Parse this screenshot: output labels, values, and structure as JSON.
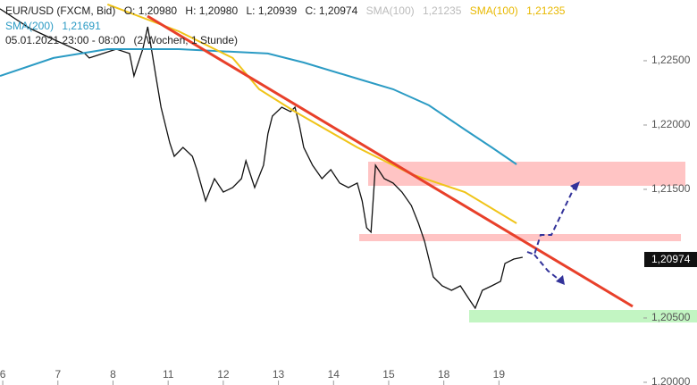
{
  "header": {
    "open": "O: 1,20980",
    "high": "H: 1,20980",
    "low": "L: 1,20939",
    "close": "C: 1,20974",
    "sma_gray_name": "SMA(100)",
    "sma_gray_value": "1,21235",
    "sma_yellow_value": "1,21235",
    "sma200_value": "1,21691",
    "date": "05.01.2021 23:00 - 08:00",
    "period": "(2 Wochen, 1 Stunde)"
  },
  "chart_data": {
    "type": "line",
    "last_label": "1,20974",
    "xlim": [
      -0.05,
      11.62
    ],
    "ylim": [
      1.19979,
      1.22972
    ],
    "xticks": [
      {
        "value": 0,
        "label": "6"
      },
      {
        "value": 1,
        "label": "7"
      },
      {
        "value": 2,
        "label": "8"
      },
      {
        "value": 3,
        "label": "11"
      },
      {
        "value": 4,
        "label": "12"
      },
      {
        "value": 5,
        "label": "13"
      },
      {
        "value": 6,
        "label": "14"
      },
      {
        "value": 7,
        "label": "15"
      },
      {
        "value": 8,
        "label": "18"
      },
      {
        "value": 9,
        "label": "19"
      }
    ],
    "yticks": [
      {
        "value": 1.225,
        "label": "1,22500"
      },
      {
        "value": 1.22,
        "label": "1,22000"
      },
      {
        "value": 1.215,
        "label": "1,21500"
      },
      {
        "value": 1.205,
        "label": "1,20500"
      },
      {
        "value": 1.2,
        "label": "1,20000"
      }
    ],
    "series": [
      {
        "name": "EUR/USD (FXCM, Bid)",
        "color": "#111111",
        "x": [
          -0.05,
          0.5,
          1.0,
          1.49,
          1.57,
          2.06,
          2.3,
          2.38,
          2.54,
          2.63,
          2.71,
          2.79,
          2.87,
          2.95,
          3.03,
          3.11,
          3.27,
          3.44,
          3.52,
          3.68,
          3.84,
          4.0,
          4.17,
          4.33,
          4.41,
          4.57,
          4.73,
          4.81,
          4.89,
          5.06,
          5.22,
          5.3,
          5.38,
          5.46,
          5.62,
          5.79,
          5.95,
          6.11,
          6.27,
          6.43,
          6.52,
          6.6,
          6.68,
          6.76,
          6.92,
          7.08,
          7.24,
          7.41,
          7.54,
          7.65,
          7.73,
          7.81,
          7.97,
          8.14,
          8.3,
          8.46,
          8.57,
          8.7,
          8.87,
          9.03,
          9.11,
          9.27,
          9.43
        ],
        "values": [
          1.22903,
          1.2275,
          1.2265,
          1.22556,
          1.22521,
          1.2259,
          1.22556,
          1.22382,
          1.2259,
          1.22764,
          1.22556,
          1.22347,
          1.22139,
          1.22,
          1.21861,
          1.21757,
          1.21826,
          1.21757,
          1.21653,
          1.2141,
          1.21583,
          1.21479,
          1.21514,
          1.21583,
          1.21722,
          1.21514,
          1.21687,
          1.21931,
          1.22069,
          1.22139,
          1.22104,
          1.22139,
          1.22,
          1.21826,
          1.21687,
          1.21583,
          1.21653,
          1.21549,
          1.21514,
          1.21549,
          1.2141,
          1.21201,
          1.21167,
          1.21687,
          1.21583,
          1.21549,
          1.21479,
          1.21375,
          1.21236,
          1.21097,
          1.20958,
          1.20819,
          1.2075,
          1.20715,
          1.2075,
          1.20646,
          1.20576,
          1.20715,
          1.2075,
          1.20785,
          1.20924,
          1.20958,
          1.20972
        ]
      },
      {
        "name": "SMA(200)",
        "color": "#2b9bc4",
        "x": [
          -0.05,
          0.92,
          1.9,
          3.19,
          4.81,
          5.46,
          6.43,
          7.08,
          7.73,
          8.38,
          8.87,
          9.32
        ],
        "values": [
          1.22382,
          1.22521,
          1.2259,
          1.2259,
          1.22556,
          1.22486,
          1.22361,
          1.22278,
          1.22153,
          1.21965,
          1.21826,
          1.21694
        ]
      },
      {
        "name": "SMA(100)",
        "color": "#f0c419",
        "x": [
          1.9,
          3.19,
          4.17,
          4.65,
          5.3,
          6.43,
          7.41,
          8.38,
          9.32
        ],
        "values": [
          1.22938,
          1.22729,
          1.22521,
          1.22278,
          1.22104,
          1.21826,
          1.21618,
          1.21479,
          1.21236
        ]
      }
    ]
  }
}
